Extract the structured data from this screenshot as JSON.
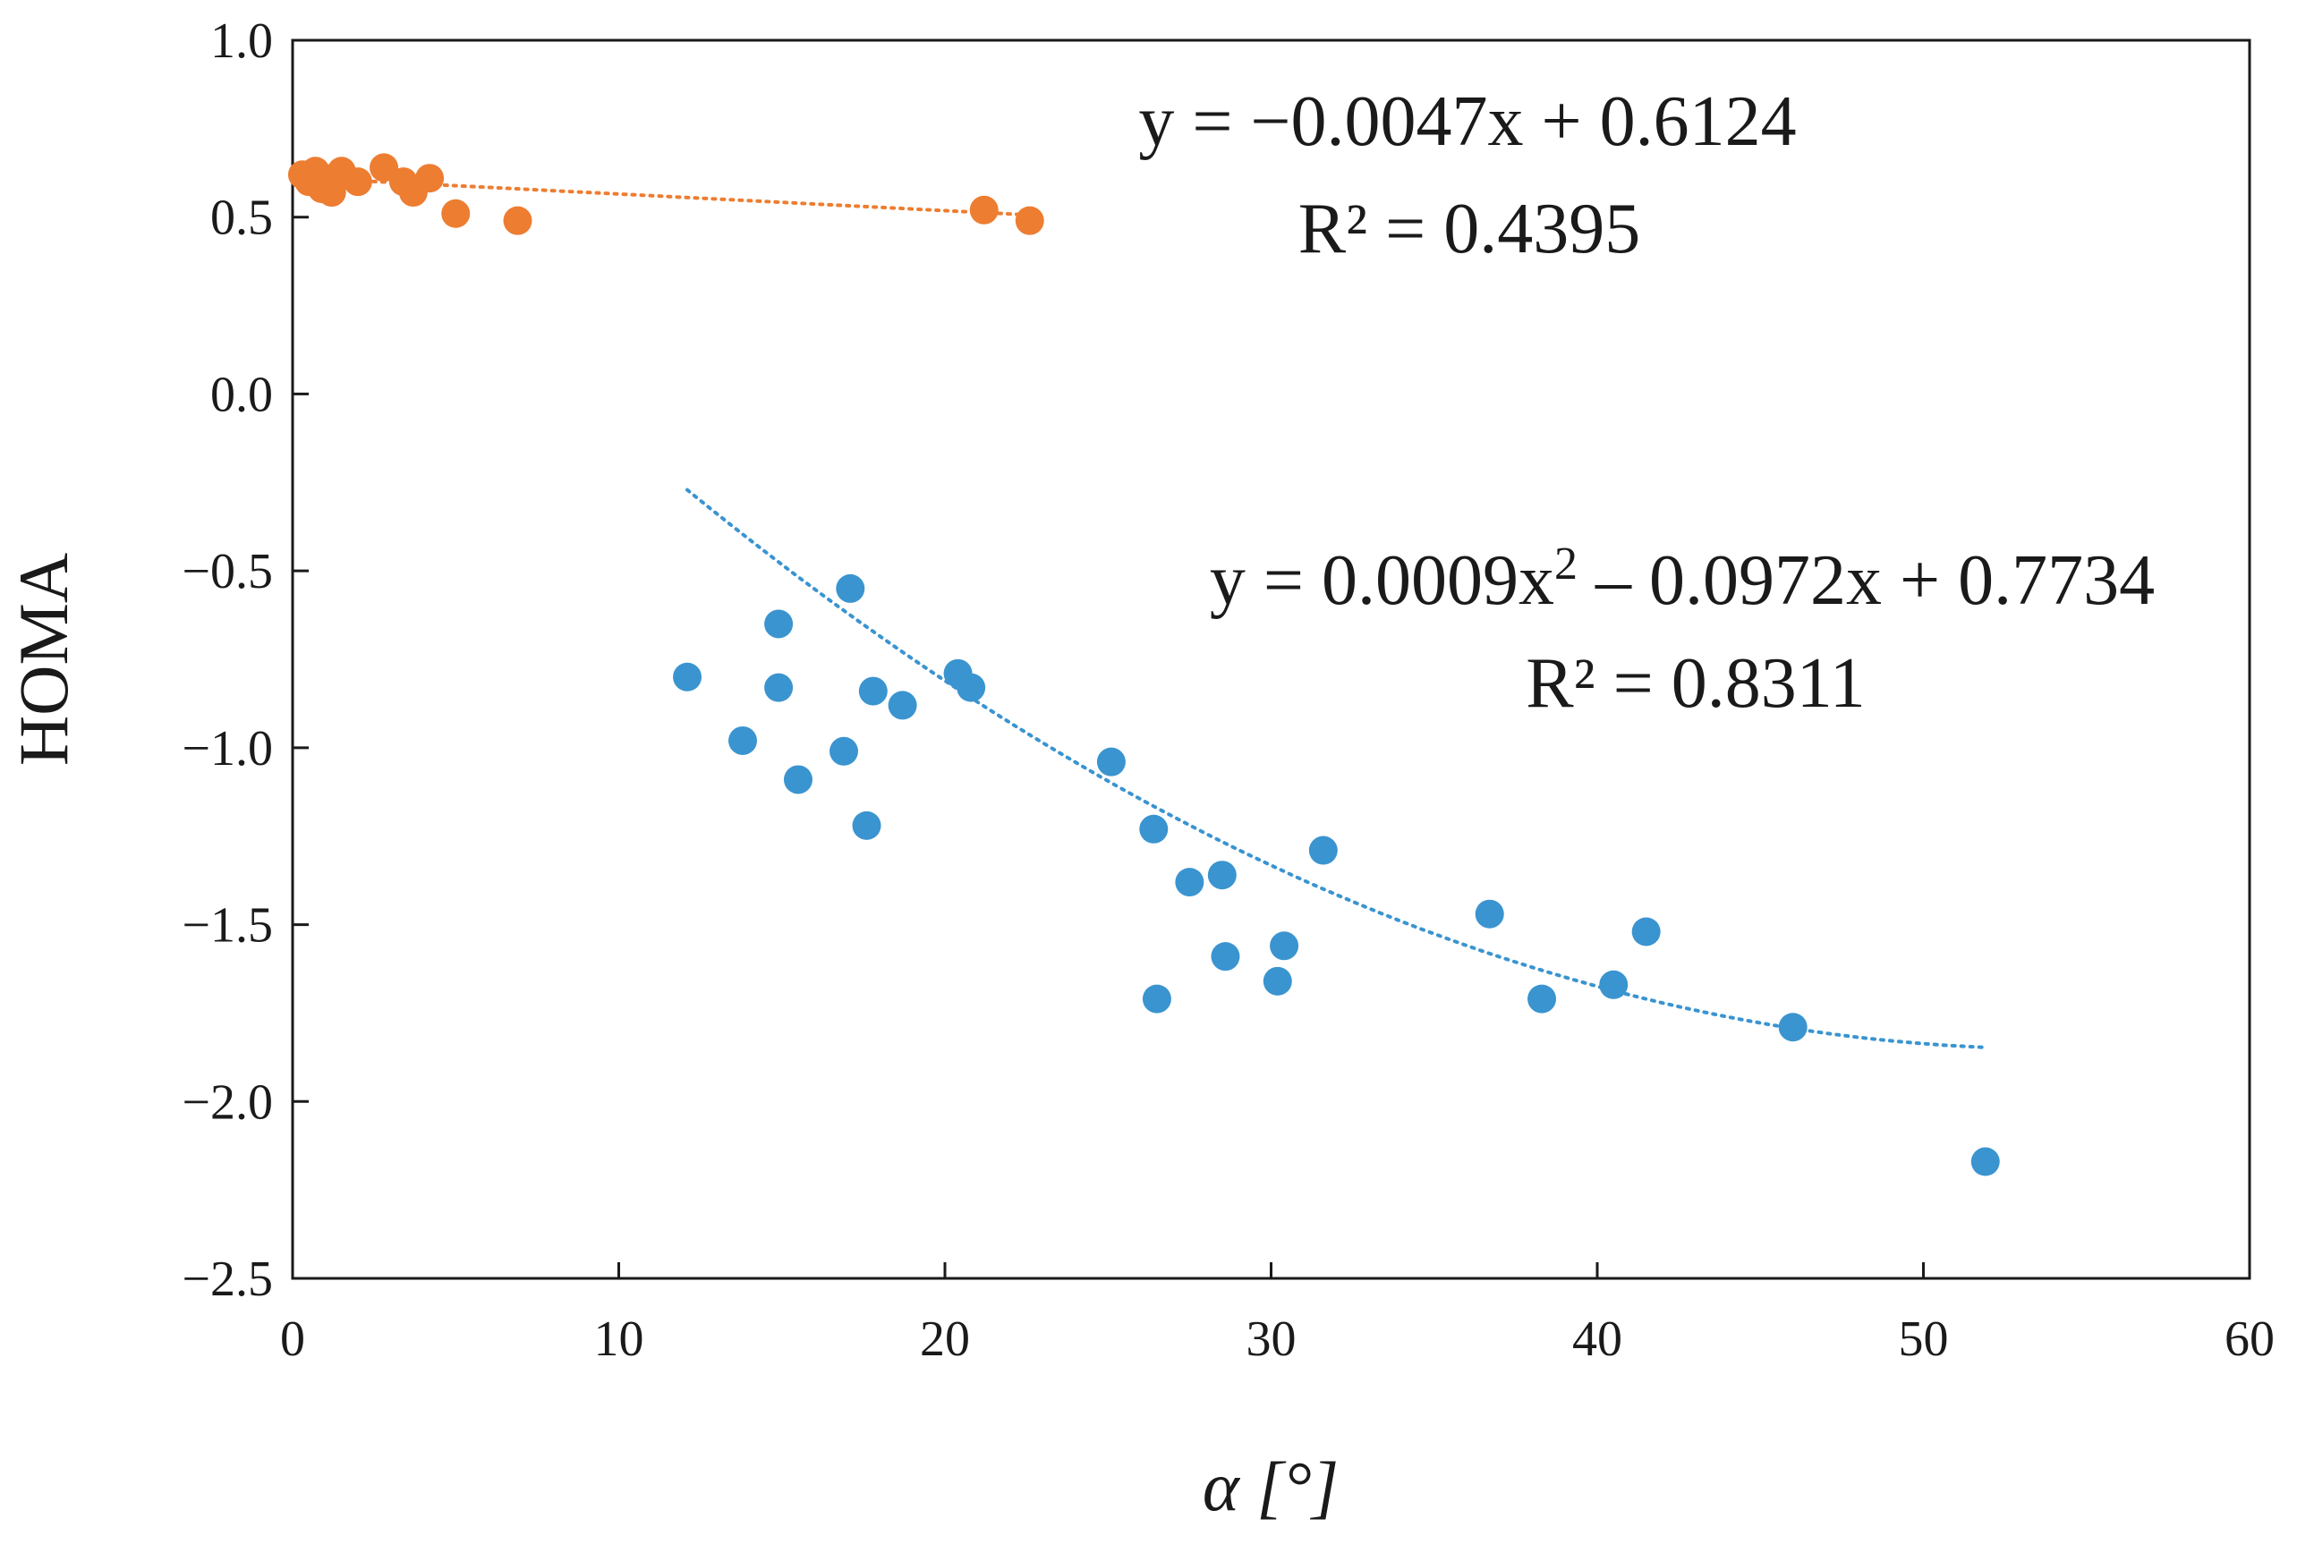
{
  "chart_data": {
    "type": "scatter",
    "title": "",
    "xlabel": "α [°]",
    "ylabel": "HOMA",
    "xlim": [
      0,
      60
    ],
    "ylim": [
      -2.5,
      1.0
    ],
    "xticks": [
      0,
      10,
      20,
      30,
      40,
      50,
      60
    ],
    "xtick_labels": [
      "0",
      "10",
      "20",
      "30",
      "40",
      "50",
      "60"
    ],
    "yticks": [
      1.0,
      0.5,
      0.0,
      -0.5,
      -1.0,
      -1.5,
      -2.0,
      -2.5
    ],
    "ytick_labels": [
      "1.0",
      "0.5",
      "0.0",
      "−0.5",
      "−1.0",
      "−1.5",
      "−2.0",
      "−2.5"
    ],
    "grid": false,
    "series": [
      {
        "name": "orange",
        "color": "#ED7D31",
        "points": [
          [
            0.3,
            0.62
          ],
          [
            0.5,
            0.6
          ],
          [
            0.7,
            0.63
          ],
          [
            0.9,
            0.58
          ],
          [
            1.0,
            0.61
          ],
          [
            1.2,
            0.57
          ],
          [
            1.5,
            0.63
          ],
          [
            2.0,
            0.6
          ],
          [
            2.8,
            0.64
          ],
          [
            3.4,
            0.6
          ],
          [
            3.7,
            0.57
          ],
          [
            4.2,
            0.61
          ],
          [
            5.0,
            0.51
          ],
          [
            6.9,
            0.49
          ],
          [
            21.2,
            0.52
          ],
          [
            22.6,
            0.49
          ]
        ],
        "trendline": {
          "kind": "linear",
          "coefficients": [
            -0.0047,
            0.6124
          ],
          "x_range": [
            0,
            22.6
          ],
          "equation": "y = −0.0047x + 0.6124",
          "r2_label": "R² = 0.4395"
        }
      },
      {
        "name": "blue",
        "color": "#3A94D0",
        "points": [
          [
            12.1,
            -0.8
          ],
          [
            13.8,
            -0.98
          ],
          [
            14.9,
            -0.65
          ],
          [
            14.9,
            -0.83
          ],
          [
            15.5,
            -1.09
          ],
          [
            16.9,
            -1.01
          ],
          [
            17.1,
            -0.55
          ],
          [
            17.6,
            -1.22
          ],
          [
            17.8,
            -0.84
          ],
          [
            18.7,
            -0.88
          ],
          [
            20.4,
            -0.79
          ],
          [
            20.8,
            -0.83
          ],
          [
            25.1,
            -1.04
          ],
          [
            26.4,
            -1.23
          ],
          [
            26.5,
            -1.71
          ],
          [
            27.5,
            -1.38
          ],
          [
            28.5,
            -1.36
          ],
          [
            28.6,
            -1.59
          ],
          [
            30.2,
            -1.66
          ],
          [
            30.4,
            -1.56
          ],
          [
            31.6,
            -1.29
          ],
          [
            36.7,
            -1.47
          ],
          [
            38.3,
            -1.71
          ],
          [
            40.5,
            -1.67
          ],
          [
            41.5,
            -1.52
          ],
          [
            46.0,
            -1.79
          ],
          [
            51.9,
            -2.17
          ]
        ],
        "trendline": {
          "kind": "polynomial",
          "coefficients": [
            0.0009,
            -0.0972,
            0.7734
          ],
          "x_range": [
            12.1,
            51.9
          ],
          "equation_prefix": "y = 0.0009x",
          "equation_exponent": "2",
          "equation_suffix": " – 0.0972x + 0.7734",
          "r2_label": "R² = 0.8311"
        }
      }
    ]
  }
}
